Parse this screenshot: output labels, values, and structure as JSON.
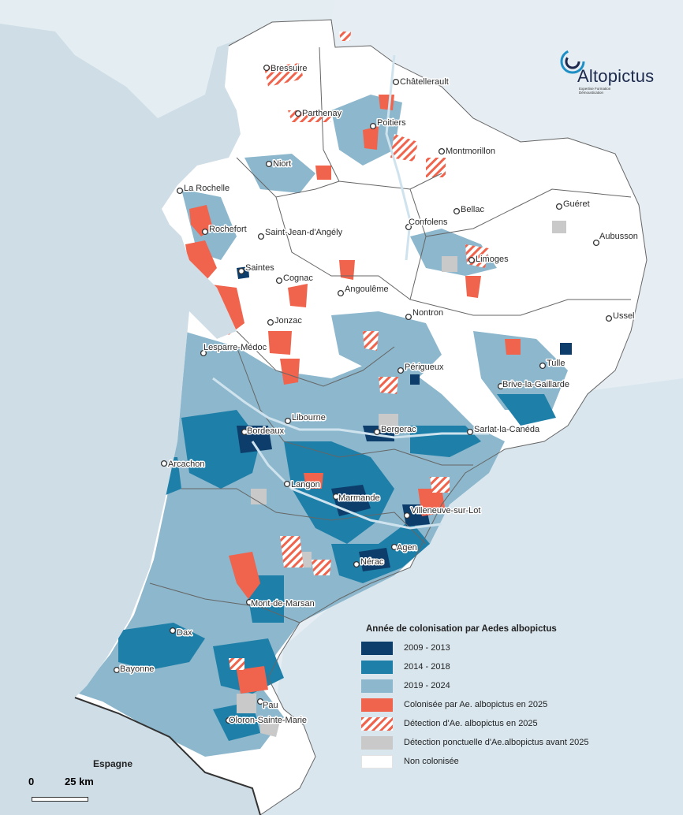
{
  "map": {
    "legend": {
      "title": "Année de colonisation par Aedes albopictus",
      "items": [
        {
          "label": "2009 - 2013",
          "color": "#0c3d6b"
        },
        {
          "label": "2014 - 2018",
          "color": "#1e7fa8"
        },
        {
          "label": "2019 - 2024",
          "color": "#8cb7cc"
        },
        {
          "label": "Colonisée par Ae. albopictus en 2025",
          "color": "#f0634c"
        },
        {
          "label": "Détection d'Ae. albopictus en 2025",
          "color": "#f0634c"
        },
        {
          "label": "Détection ponctuelle d'Ae.albopictus avant 2025",
          "color": "#c9c9c9"
        },
        {
          "label": "Non colonisée",
          "color": "#ffffff"
        }
      ]
    },
    "cities": [
      "Bressuire",
      "Châtellerault",
      "Parthenay",
      "Poitiers",
      "Montmorillon",
      "Niort",
      "La Rochelle",
      "Bellac",
      "Guéret",
      "Confolens",
      "Rochefort",
      "Saint-Jean-d'Angély",
      "Aubusson",
      "Limoges",
      "Saintes",
      "Cognac",
      "Angoulême",
      "Ussel",
      "Nontron",
      "Jonzac",
      "Lesparre-Médoc",
      "Tulle",
      "Périgueux",
      "Brive-la-Gaillarde",
      "Libourne",
      "Bordeaux",
      "Bergerac",
      "Sarlat-la-Canéda",
      "Arcachon",
      "Langon",
      "Marmande",
      "Villeneuve-sur-Lot",
      "Agen",
      "Nérac",
      "Mont-de-Marsan",
      "Dax",
      "Bayonne",
      "Pau",
      "Oloron-Sainte-Marie"
    ],
    "country_label": "Espagne",
    "scale": {
      "zero": "0",
      "length": "25 km"
    },
    "logo": {
      "name": "Altopictus",
      "tagline": "Expertise Formation Démoustication",
      "color": "#1e8fc4"
    }
  }
}
